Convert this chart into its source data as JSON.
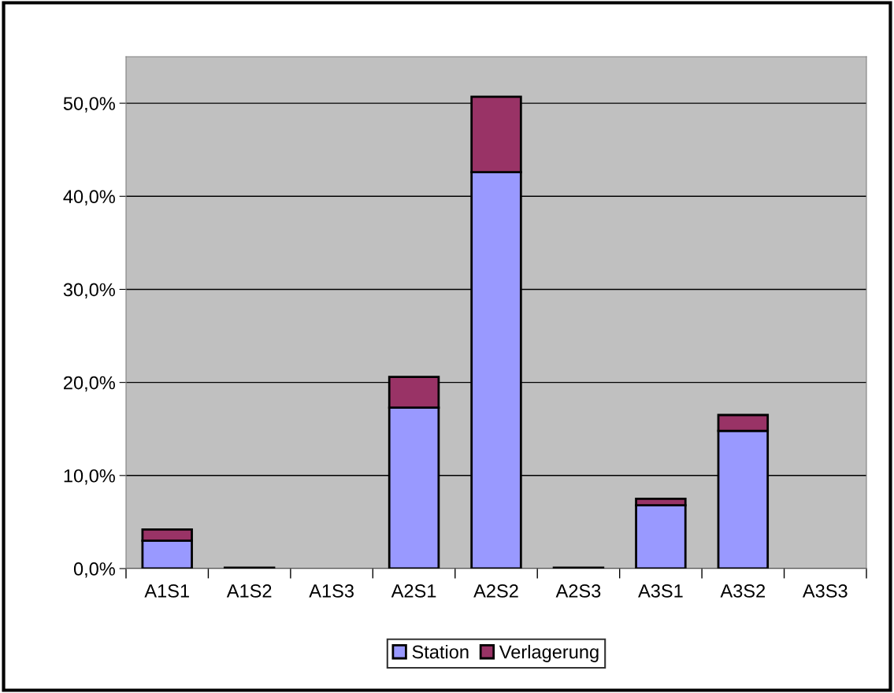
{
  "chart_data": {
    "type": "bar",
    "stacked": true,
    "categories": [
      "A1S1",
      "A1S2",
      "A1S3",
      "A2S1",
      "A2S2",
      "A2S3",
      "A3S1",
      "A3S2",
      "A3S3"
    ],
    "series": [
      {
        "name": "Station",
        "color": "#9999ff",
        "values": [
          3.0,
          0.1,
          null,
          17.3,
          42.6,
          0.1,
          6.8,
          14.8,
          null
        ]
      },
      {
        "name": "Verlagerung",
        "color": "#993366",
        "values": [
          1.2,
          null,
          null,
          3.3,
          8.1,
          null,
          0.7,
          1.7,
          null
        ]
      }
    ],
    "ylim": [
      0,
      55
    ],
    "yticks": [
      {
        "value": 0,
        "label": "0,0%"
      },
      {
        "value": 10,
        "label": "10,0%"
      },
      {
        "value": 20,
        "label": "20,0%"
      },
      {
        "value": 30,
        "label": "30,0%"
      },
      {
        "value": 40,
        "label": "40,0%"
      },
      {
        "value": 50,
        "label": "50,0%"
      }
    ],
    "grid": "y",
    "legend": "bottom"
  }
}
